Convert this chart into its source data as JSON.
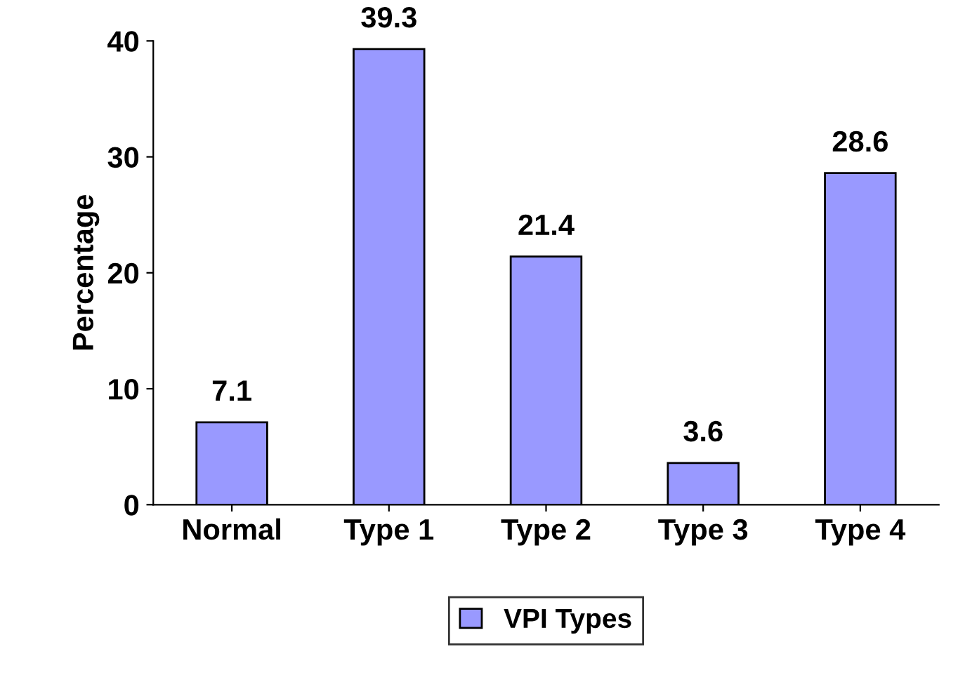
{
  "chart_data": {
    "type": "bar",
    "ylabel": "Percentage",
    "categories": [
      "Normal",
      "Type 1",
      "Type 2",
      "Type 3",
      "Type 4"
    ],
    "series": [
      {
        "name": "VPI Types",
        "color": "#9999ff",
        "values": [
          7.1,
          39.3,
          21.4,
          3.6,
          28.6
        ]
      }
    ],
    "ylim": [
      0,
      40
    ],
    "yticks": [
      0,
      10,
      20,
      30,
      40
    ],
    "grid": false,
    "legend": "bottom",
    "data_labels": true
  }
}
